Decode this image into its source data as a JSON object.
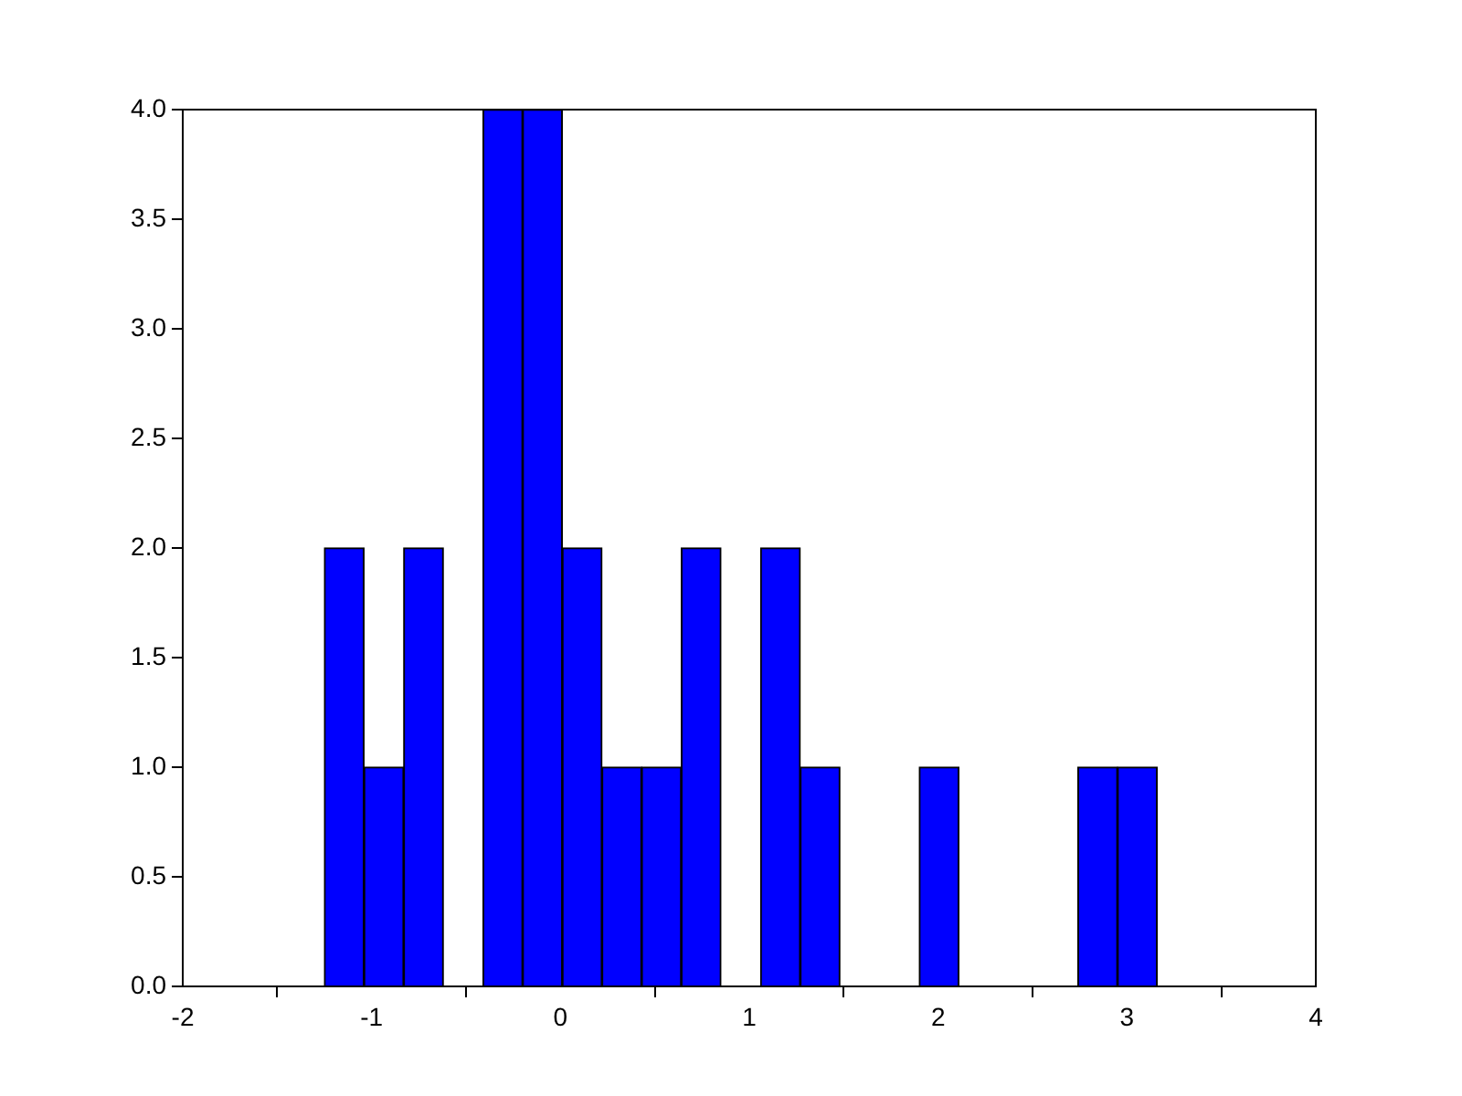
{
  "chart_data": {
    "type": "histogram",
    "bins": [
      -1.25,
      -1.04,
      -0.83,
      -0.62,
      -0.41,
      -0.2,
      0.01,
      0.22,
      0.43,
      0.64,
      0.85,
      1.06,
      1.27,
      1.48,
      1.69,
      1.9,
      2.11,
      2.32,
      2.53,
      2.74,
      2.95,
      3.16
    ],
    "values": [
      2,
      1,
      2,
      0,
      4,
      4,
      2,
      1,
      1,
      2,
      0,
      2,
      1,
      0,
      0,
      1,
      0,
      0,
      0,
      1,
      1
    ],
    "color": "#0000ff",
    "xlim": [
      -2,
      4
    ],
    "xticks": [
      -2,
      -1,
      0,
      1,
      2,
      3,
      4
    ],
    "ylim": [
      0,
      4
    ],
    "yticks": [
      {
        "value": 0,
        "label": "0.0"
      },
      {
        "value": 0.5,
        "label": "0.5"
      },
      {
        "value": 1,
        "label": "1.0"
      },
      {
        "value": 1.5,
        "label": "1.5"
      },
      {
        "value": 2,
        "label": "2.0"
      },
      {
        "value": 2.5,
        "label": "2.5"
      },
      {
        "value": 3,
        "label": "3.0"
      },
      {
        "value": 3.5,
        "label": "3.5"
      },
      {
        "value": 4,
        "label": "4.0"
      }
    ],
    "grid": false
  }
}
